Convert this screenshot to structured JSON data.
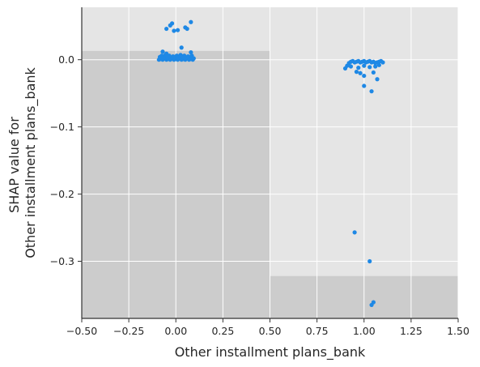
{
  "chart_data": {
    "type": "scatter",
    "title": "",
    "xlabel": "Other installment plans_bank",
    "ylabel": [
      "SHAP value for",
      "Other installment plans_bank"
    ],
    "xlim": [
      -0.5,
      1.5
    ],
    "ylim": [
      -0.385,
      0.078
    ],
    "x_ticks": [
      -0.5,
      -0.25,
      0.0,
      0.25,
      0.5,
      0.75,
      1.0,
      1.25,
      1.5
    ],
    "x_tick_labels": [
      "−0.50",
      "−0.25",
      "0.00",
      "0.25",
      "0.50",
      "0.75",
      "1.00",
      "1.25",
      "1.50"
    ],
    "y_ticks": [
      0.0,
      -0.1,
      -0.2,
      -0.3
    ],
    "y_tick_labels": [
      "0.0",
      "−0.1",
      "−0.2",
      "−0.3"
    ],
    "grid": true,
    "colors": {
      "point": "#1e88e5",
      "plot_background": "#e5e5e5",
      "histogram": "#cccccc",
      "grid": "#ffffff",
      "axis": "#333333"
    },
    "histogram_bars": [
      {
        "x_start": -0.5,
        "x_end": 0.5,
        "height_y": 0.013
      },
      {
        "x_start": 0.5,
        "x_end": 1.5,
        "height_y": -0.322
      }
    ],
    "series": [
      {
        "points": [
          [
            -0.09,
            0.0
          ],
          [
            -0.08,
            0.001
          ],
          [
            -0.07,
            0.0
          ],
          [
            -0.06,
            0.002
          ],
          [
            -0.05,
            0.0
          ],
          [
            -0.04,
            0.001
          ],
          [
            -0.03,
            0.0
          ],
          [
            -0.02,
            0.002
          ],
          [
            -0.01,
            0.0
          ],
          [
            0.0,
            0.001
          ],
          [
            0.01,
            0.0
          ],
          [
            0.02,
            0.002
          ],
          [
            0.03,
            0.0
          ],
          [
            0.04,
            0.001
          ],
          [
            0.05,
            0.0
          ],
          [
            0.06,
            0.002
          ],
          [
            0.07,
            0.0
          ],
          [
            0.08,
            0.001
          ],
          [
            0.09,
            0.0
          ],
          [
            -0.085,
            0.004
          ],
          [
            -0.065,
            0.003
          ],
          [
            -0.045,
            0.005
          ],
          [
            -0.025,
            0.003
          ],
          [
            -0.005,
            0.004
          ],
          [
            0.015,
            0.003
          ],
          [
            0.035,
            0.005
          ],
          [
            0.055,
            0.003
          ],
          [
            0.075,
            0.004
          ],
          [
            0.095,
            0.002
          ],
          [
            -0.075,
            0.006
          ],
          [
            -0.055,
            0.007
          ],
          [
            -0.035,
            0.006
          ],
          [
            -0.015,
            0.005
          ],
          [
            0.005,
            0.006
          ],
          [
            0.025,
            0.007
          ],
          [
            0.045,
            0.006
          ],
          [
            0.065,
            0.005
          ],
          [
            0.085,
            0.006
          ],
          [
            -0.07,
            0.012
          ],
          [
            0.08,
            0.011
          ],
          [
            -0.05,
            0.009
          ],
          [
            0.03,
            0.018
          ],
          [
            -0.05,
            0.046
          ],
          [
            -0.03,
            0.051
          ],
          [
            -0.02,
            0.054
          ],
          [
            -0.01,
            0.043
          ],
          [
            0.01,
            0.044
          ],
          [
            0.05,
            0.048
          ],
          [
            0.06,
            0.046
          ],
          [
            0.08,
            0.056
          ]
        ]
      },
      {
        "points": [
          [
            0.91,
            -0.009
          ],
          [
            0.92,
            -0.005
          ],
          [
            0.93,
            -0.003
          ],
          [
            0.94,
            -0.002
          ],
          [
            0.95,
            -0.004
          ],
          [
            0.96,
            -0.003
          ],
          [
            0.97,
            -0.002
          ],
          [
            0.98,
            -0.004
          ],
          [
            0.99,
            -0.003
          ],
          [
            1.0,
            -0.002
          ],
          [
            1.01,
            -0.004
          ],
          [
            1.02,
            -0.003
          ],
          [
            1.03,
            -0.002
          ],
          [
            1.04,
            -0.004
          ],
          [
            1.05,
            -0.003
          ],
          [
            1.06,
            -0.005
          ],
          [
            1.07,
            -0.004
          ],
          [
            1.08,
            -0.003
          ],
          [
            1.09,
            -0.002
          ],
          [
            1.1,
            -0.004
          ],
          [
            0.9,
            -0.013
          ],
          [
            0.93,
            -0.01
          ],
          [
            0.97,
            -0.012
          ],
          [
            1.0,
            -0.009
          ],
          [
            1.03,
            -0.011
          ],
          [
            1.06,
            -0.01
          ],
          [
            1.08,
            -0.008
          ],
          [
            0.98,
            -0.02
          ],
          [
            1.0,
            -0.024
          ],
          [
            1.05,
            -0.019
          ],
          [
            0.96,
            -0.018
          ],
          [
            1.07,
            -0.029
          ],
          [
            1.0,
            -0.039
          ],
          [
            1.04,
            -0.047
          ],
          [
            0.95,
            -0.257
          ],
          [
            1.03,
            -0.3
          ],
          [
            1.04,
            -0.365
          ],
          [
            1.05,
            -0.361
          ]
        ]
      }
    ]
  }
}
